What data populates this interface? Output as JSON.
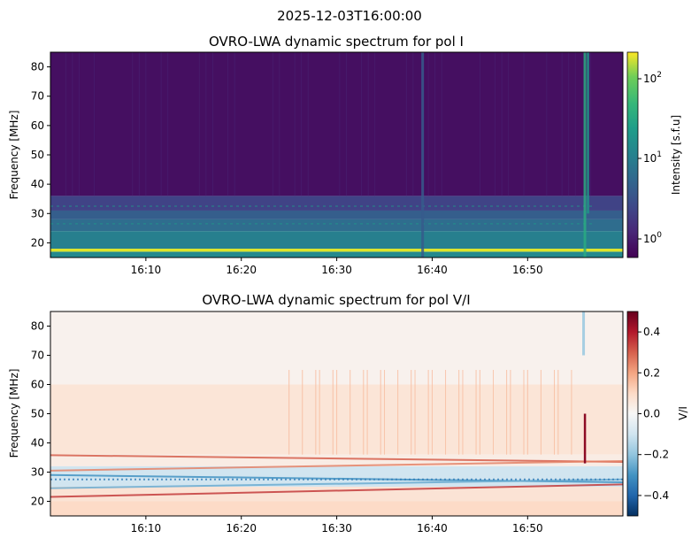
{
  "suptitle": "2025-12-03T16:00:00",
  "chart_data": [
    {
      "type": "heatmap",
      "title": "OVRO-LWA dynamic spectrum for pol I",
      "xlabel": "",
      "ylabel": "Frequency [MHz]",
      "xlim": [
        "16:00:00",
        "16:59:59"
      ],
      "xticks": [
        "16:10",
        "16:20",
        "16:30",
        "16:40",
        "16:50"
      ],
      "ylim": [
        15,
        85
      ],
      "yticks": [
        20,
        30,
        40,
        50,
        60,
        70,
        80
      ],
      "colormap": "viridis",
      "colorbar": {
        "label": "Intensity [s.f.u]",
        "scale": "log",
        "range": [
          0.55,
          200
        ],
        "ticks": [
          "10^0",
          "10^1",
          "10^2"
        ]
      },
      "features": {
        "background_intensity_above_36MHz": 0.7,
        "background_intensity_below_36MHz": 5,
        "bright_band_MHz": [
          17,
          18
        ],
        "bright_band_intensity": 150,
        "vertical_bursts": [
          {
            "time": "16:39",
            "intensity": 3
          },
          {
            "time": "16:56",
            "intensity": 20
          }
        ]
      }
    },
    {
      "type": "heatmap",
      "title": "OVRO-LWA dynamic spectrum for pol V/I",
      "xlabel": "",
      "ylabel": "Frequency [MHz]",
      "xlim": [
        "16:00:00",
        "16:59:59"
      ],
      "xticks": [
        "16:10",
        "16:20",
        "16:30",
        "16:40",
        "16:50"
      ],
      "ylim": [
        15,
        85
      ],
      "yticks": [
        20,
        30,
        40,
        50,
        60,
        70,
        80
      ],
      "colormap": "RdBu_r",
      "colorbar": {
        "label": "V/I",
        "scale": "linear",
        "range": [
          -0.5,
          0.5
        ],
        "ticks": [
          "0.4",
          "0.2",
          "0.0",
          "−0.2",
          "−0.4"
        ]
      },
      "features": {
        "background_value": 0.02,
        "positive_region_MHz": [
          36,
          60
        ],
        "positive_region_value": 0.12,
        "negative_band_MHz": [
          25,
          32
        ],
        "vertical_bursts": [
          {
            "time": "16:56",
            "value": 0.45
          }
        ]
      }
    }
  ]
}
